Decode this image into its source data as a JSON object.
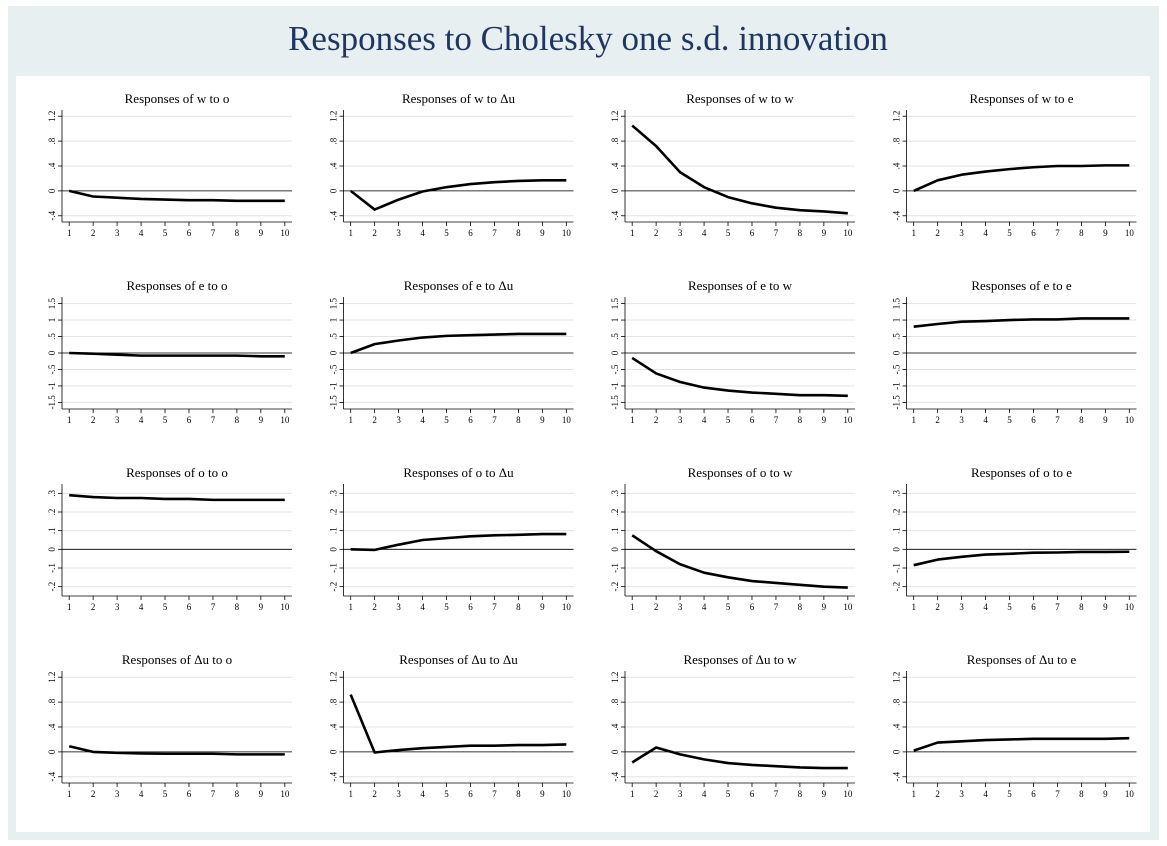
{
  "title": "Responses to Cholesky one s.d. innovation",
  "chart_data": [
    {
      "type": "line",
      "title": "Responses of w to o",
      "x": [
        1,
        2,
        3,
        4,
        5,
        6,
        7,
        8,
        9,
        10
      ],
      "xlim": [
        0.7,
        10.3
      ],
      "xticks": [
        1,
        2,
        3,
        4,
        5,
        6,
        7,
        8,
        9,
        10
      ],
      "ylim": [
        -0.5,
        1.3
      ],
      "yticks": [
        {
          "value": -0.4,
          "label": "-.4"
        },
        0,
        {
          "value": 0.4,
          "label": ".4"
        },
        {
          "value": 0.8,
          "label": ".8"
        },
        1.2
      ],
      "grid": true,
      "color": "#000000",
      "values": [
        0,
        -0.09,
        -0.11,
        -0.13,
        -0.14,
        -0.15,
        -0.15,
        -0.16,
        -0.16,
        -0.16
      ]
    },
    {
      "type": "line",
      "title": "Responses of w to Δu",
      "x": [
        1,
        2,
        3,
        4,
        5,
        6,
        7,
        8,
        9,
        10
      ],
      "xlim": [
        0.7,
        10.3
      ],
      "xticks": [
        1,
        2,
        3,
        4,
        5,
        6,
        7,
        8,
        9,
        10
      ],
      "ylim": [
        -0.5,
        1.3
      ],
      "yticks": [
        {
          "value": -0.4,
          "label": "-.4"
        },
        0,
        {
          "value": 0.4,
          "label": ".4"
        },
        {
          "value": 0.8,
          "label": ".8"
        },
        1.2
      ],
      "grid": true,
      "color": "#000000",
      "values": [
        0,
        -0.3,
        -0.14,
        -0.01,
        0.06,
        0.11,
        0.14,
        0.16,
        0.17,
        0.17
      ]
    },
    {
      "type": "line",
      "title": "Responses of w to w",
      "x": [
        1,
        2,
        3,
        4,
        5,
        6,
        7,
        8,
        9,
        10
      ],
      "xlim": [
        0.7,
        10.3
      ],
      "xticks": [
        1,
        2,
        3,
        4,
        5,
        6,
        7,
        8,
        9,
        10
      ],
      "ylim": [
        -0.5,
        1.3
      ],
      "yticks": [
        {
          "value": -0.4,
          "label": "-.4"
        },
        0,
        {
          "value": 0.4,
          "label": ".4"
        },
        {
          "value": 0.8,
          "label": ".8"
        },
        1.2
      ],
      "grid": true,
      "color": "#000000",
      "values": [
        1.05,
        0.72,
        0.3,
        0.06,
        -0.1,
        -0.2,
        -0.27,
        -0.31,
        -0.33,
        -0.36
      ]
    },
    {
      "type": "line",
      "title": "Responses of w to e",
      "x": [
        1,
        2,
        3,
        4,
        5,
        6,
        7,
        8,
        9,
        10
      ],
      "xlim": [
        0.7,
        10.3
      ],
      "xticks": [
        1,
        2,
        3,
        4,
        5,
        6,
        7,
        8,
        9,
        10
      ],
      "ylim": [
        -0.5,
        1.3
      ],
      "yticks": [
        {
          "value": -0.4,
          "label": "-.4"
        },
        0,
        {
          "value": 0.4,
          "label": ".4"
        },
        {
          "value": 0.8,
          "label": ".8"
        },
        1.2
      ],
      "grid": true,
      "color": "#000000",
      "values": [
        0,
        0.17,
        0.26,
        0.31,
        0.35,
        0.38,
        0.4,
        0.4,
        0.41,
        0.41
      ]
    },
    {
      "type": "line",
      "title": "Responses of e to o",
      "x": [
        1,
        2,
        3,
        4,
        5,
        6,
        7,
        8,
        9,
        10
      ],
      "xlim": [
        0.7,
        10.3
      ],
      "xticks": [
        1,
        2,
        3,
        4,
        5,
        6,
        7,
        8,
        9,
        10
      ],
      "ylim": [
        -1.7,
        1.7
      ],
      "yticks": [
        -1.5,
        -1,
        {
          "value": -0.5,
          "label": "-.5"
        },
        0,
        {
          "value": 0.5,
          "label": ".5"
        },
        1,
        1.5
      ],
      "grid": true,
      "color": "#000000",
      "values": [
        0,
        -0.02,
        -0.05,
        -0.08,
        -0.08,
        -0.08,
        -0.08,
        -0.08,
        -0.1,
        -0.1
      ]
    },
    {
      "type": "line",
      "title": "Responses of e to Δu",
      "x": [
        1,
        2,
        3,
        4,
        5,
        6,
        7,
        8,
        9,
        10
      ],
      "xlim": [
        0.7,
        10.3
      ],
      "xticks": [
        1,
        2,
        3,
        4,
        5,
        6,
        7,
        8,
        9,
        10
      ],
      "ylim": [
        -1.7,
        1.7
      ],
      "yticks": [
        -1.5,
        -1,
        {
          "value": -0.5,
          "label": "-.5"
        },
        0,
        {
          "value": 0.5,
          "label": ".5"
        },
        1,
        1.5
      ],
      "grid": true,
      "color": "#000000",
      "values": [
        0,
        0.27,
        0.38,
        0.47,
        0.52,
        0.54,
        0.56,
        0.58,
        0.58,
        0.58
      ]
    },
    {
      "type": "line",
      "title": "Responses of e to w",
      "x": [
        1,
        2,
        3,
        4,
        5,
        6,
        7,
        8,
        9,
        10
      ],
      "xlim": [
        0.7,
        10.3
      ],
      "xticks": [
        1,
        2,
        3,
        4,
        5,
        6,
        7,
        8,
        9,
        10
      ],
      "ylim": [
        -1.7,
        1.7
      ],
      "yticks": [
        -1.5,
        -1,
        {
          "value": -0.5,
          "label": "-.5"
        },
        0,
        {
          "value": 0.5,
          "label": ".5"
        },
        1,
        1.5
      ],
      "grid": true,
      "color": "#000000",
      "values": [
        -0.15,
        -0.62,
        -0.88,
        -1.05,
        -1.14,
        -1.2,
        -1.24,
        -1.28,
        -1.28,
        -1.3
      ]
    },
    {
      "type": "line",
      "title": "Responses of e to e",
      "x": [
        1,
        2,
        3,
        4,
        5,
        6,
        7,
        8,
        9,
        10
      ],
      "xlim": [
        0.7,
        10.3
      ],
      "xticks": [
        1,
        2,
        3,
        4,
        5,
        6,
        7,
        8,
        9,
        10
      ],
      "ylim": [
        -1.7,
        1.7
      ],
      "yticks": [
        -1.5,
        -1,
        {
          "value": -0.5,
          "label": "-.5"
        },
        0,
        {
          "value": 0.5,
          "label": ".5"
        },
        1,
        1.5
      ],
      "grid": true,
      "color": "#000000",
      "values": [
        0.8,
        0.88,
        0.95,
        0.97,
        1.0,
        1.02,
        1.02,
        1.05,
        1.05,
        1.05
      ]
    },
    {
      "type": "line",
      "title": "Responses of o to o",
      "x": [
        1,
        2,
        3,
        4,
        5,
        6,
        7,
        8,
        9,
        10
      ],
      "xlim": [
        0.7,
        10.3
      ],
      "xticks": [
        1,
        2,
        3,
        4,
        5,
        6,
        7,
        8,
        9,
        10
      ],
      "ylim": [
        -0.25,
        0.35
      ],
      "yticks": [
        {
          "value": -0.2,
          "label": "-.2"
        },
        {
          "value": -0.1,
          "label": "-.1"
        },
        0,
        {
          "value": 0.1,
          "label": ".1"
        },
        {
          "value": 0.2,
          "label": ".2"
        },
        {
          "value": 0.3,
          "label": ".3"
        }
      ],
      "grid": true,
      "color": "#000000",
      "values": [
        0.29,
        0.28,
        0.275,
        0.275,
        0.27,
        0.27,
        0.265,
        0.265,
        0.265,
        0.265
      ]
    },
    {
      "type": "line",
      "title": "Responses of o to Δu",
      "x": [
        1,
        2,
        3,
        4,
        5,
        6,
        7,
        8,
        9,
        10
      ],
      "xlim": [
        0.7,
        10.3
      ],
      "xticks": [
        1,
        2,
        3,
        4,
        5,
        6,
        7,
        8,
        9,
        10
      ],
      "ylim": [
        -0.25,
        0.35
      ],
      "yticks": [
        {
          "value": -0.2,
          "label": "-.2"
        },
        {
          "value": -0.1,
          "label": "-.1"
        },
        0,
        {
          "value": 0.1,
          "label": ".1"
        },
        {
          "value": 0.2,
          "label": ".2"
        },
        {
          "value": 0.3,
          "label": ".3"
        }
      ],
      "grid": true,
      "color": "#000000",
      "values": [
        0,
        -0.003,
        0.025,
        0.05,
        0.06,
        0.07,
        0.075,
        0.078,
        0.082,
        0.082
      ]
    },
    {
      "type": "line",
      "title": "Responses of o to w",
      "x": [
        1,
        2,
        3,
        4,
        5,
        6,
        7,
        8,
        9,
        10
      ],
      "xlim": [
        0.7,
        10.3
      ],
      "xticks": [
        1,
        2,
        3,
        4,
        5,
        6,
        7,
        8,
        9,
        10
      ],
      "ylim": [
        -0.25,
        0.35
      ],
      "yticks": [
        {
          "value": -0.2,
          "label": "-.2"
        },
        {
          "value": -0.1,
          "label": "-.1"
        },
        0,
        {
          "value": 0.1,
          "label": ".1"
        },
        {
          "value": 0.2,
          "label": ".2"
        },
        {
          "value": 0.3,
          "label": ".3"
        }
      ],
      "grid": true,
      "color": "#000000",
      "values": [
        0.075,
        -0.01,
        -0.08,
        -0.125,
        -0.15,
        -0.17,
        -0.18,
        -0.19,
        -0.2,
        -0.205
      ]
    },
    {
      "type": "line",
      "title": "Responses of o to e",
      "x": [
        1,
        2,
        3,
        4,
        5,
        6,
        7,
        8,
        9,
        10
      ],
      "xlim": [
        0.7,
        10.3
      ],
      "xticks": [
        1,
        2,
        3,
        4,
        5,
        6,
        7,
        8,
        9,
        10
      ],
      "ylim": [
        -0.25,
        0.35
      ],
      "yticks": [
        {
          "value": -0.2,
          "label": "-.2"
        },
        {
          "value": -0.1,
          "label": "-.1"
        },
        0,
        {
          "value": 0.1,
          "label": ".1"
        },
        {
          "value": 0.2,
          "label": ".2"
        },
        {
          "value": 0.3,
          "label": ".3"
        }
      ],
      "grid": true,
      "color": "#000000",
      "values": [
        -0.085,
        -0.055,
        -0.04,
        -0.028,
        -0.024,
        -0.018,
        -0.017,
        -0.014,
        -0.014,
        -0.013
      ]
    },
    {
      "type": "line",
      "title": "Responses of Δu to o",
      "x": [
        1,
        2,
        3,
        4,
        5,
        6,
        7,
        8,
        9,
        10
      ],
      "xlim": [
        0.7,
        10.3
      ],
      "xticks": [
        1,
        2,
        3,
        4,
        5,
        6,
        7,
        8,
        9,
        10
      ],
      "ylim": [
        -0.5,
        1.3
      ],
      "yticks": [
        {
          "value": -0.4,
          "label": "-.4"
        },
        0,
        {
          "value": 0.4,
          "label": ".4"
        },
        {
          "value": 0.8,
          "label": ".8"
        },
        1.2
      ],
      "grid": true,
      "color": "#000000",
      "values": [
        0.09,
        0.0,
        -0.015,
        -0.025,
        -0.03,
        -0.03,
        -0.03,
        -0.04,
        -0.04,
        -0.04
      ]
    },
    {
      "type": "line",
      "title": "Responses of Δu to Δu",
      "x": [
        1,
        2,
        3,
        4,
        5,
        6,
        7,
        8,
        9,
        10
      ],
      "xlim": [
        0.7,
        10.3
      ],
      "xticks": [
        1,
        2,
        3,
        4,
        5,
        6,
        7,
        8,
        9,
        10
      ],
      "ylim": [
        -0.5,
        1.3
      ],
      "yticks": [
        {
          "value": -0.4,
          "label": "-.4"
        },
        0,
        {
          "value": 0.4,
          "label": ".4"
        },
        {
          "value": 0.8,
          "label": ".8"
        },
        1.2
      ],
      "grid": true,
      "color": "#000000",
      "values": [
        0.92,
        -0.01,
        0.03,
        0.06,
        0.08,
        0.1,
        0.1,
        0.11,
        0.11,
        0.12
      ]
    },
    {
      "type": "line",
      "title": "Responses of Δu to w",
      "x": [
        1,
        2,
        3,
        4,
        5,
        6,
        7,
        8,
        9,
        10
      ],
      "xlim": [
        0.7,
        10.3
      ],
      "xticks": [
        1,
        2,
        3,
        4,
        5,
        6,
        7,
        8,
        9,
        10
      ],
      "ylim": [
        -0.5,
        1.3
      ],
      "yticks": [
        {
          "value": -0.4,
          "label": "-.4"
        },
        0,
        {
          "value": 0.4,
          "label": ".4"
        },
        {
          "value": 0.8,
          "label": ".8"
        },
        1.2
      ],
      "grid": true,
      "color": "#000000",
      "values": [
        -0.17,
        0.07,
        -0.04,
        -0.12,
        -0.18,
        -0.21,
        -0.23,
        -0.25,
        -0.26,
        -0.26
      ]
    },
    {
      "type": "line",
      "title": "Responses of Δu to e",
      "x": [
        1,
        2,
        3,
        4,
        5,
        6,
        7,
        8,
        9,
        10
      ],
      "xlim": [
        0.7,
        10.3
      ],
      "xticks": [
        1,
        2,
        3,
        4,
        5,
        6,
        7,
        8,
        9,
        10
      ],
      "ylim": [
        -0.5,
        1.3
      ],
      "yticks": [
        {
          "value": -0.4,
          "label": "-.4"
        },
        0,
        {
          "value": 0.4,
          "label": ".4"
        },
        {
          "value": 0.8,
          "label": ".8"
        },
        1.2
      ],
      "grid": true,
      "color": "#000000",
      "values": [
        0.02,
        0.15,
        0.17,
        0.19,
        0.2,
        0.21,
        0.21,
        0.21,
        0.21,
        0.22
      ]
    }
  ]
}
